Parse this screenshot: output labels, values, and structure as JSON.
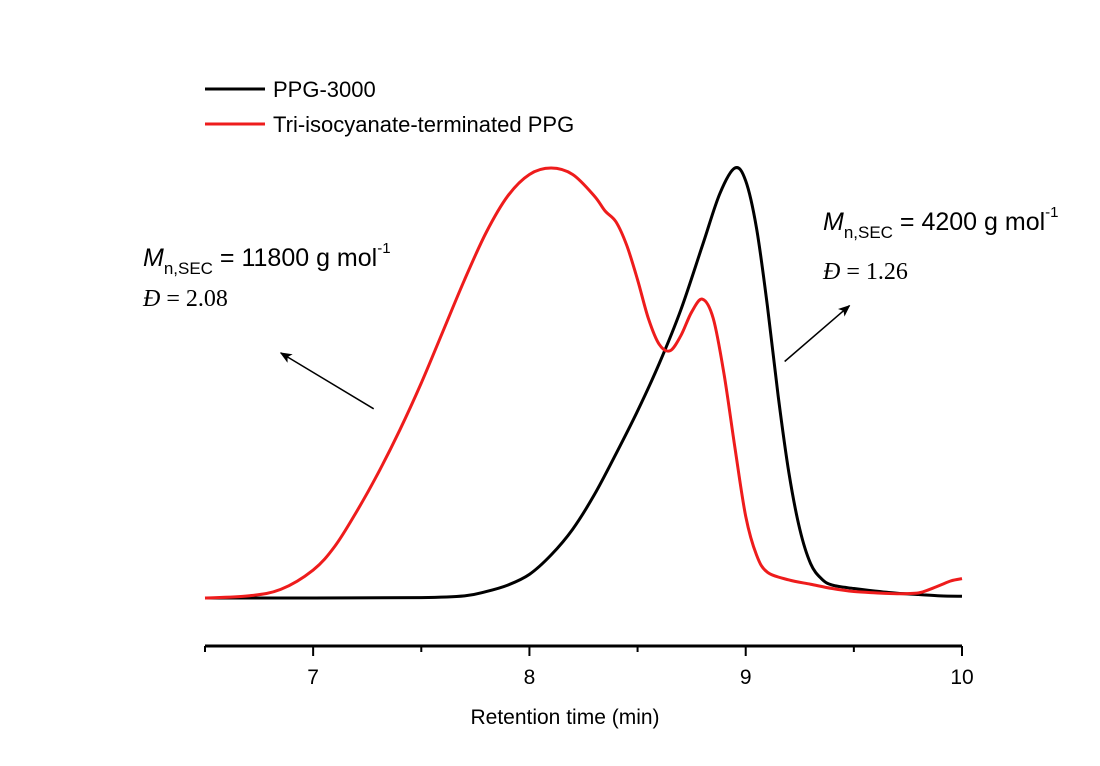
{
  "chart_data": {
    "type": "line",
    "xlabel": "Retention time (min)",
    "ylabel": "",
    "xlim": [
      6.5,
      10.0
    ],
    "ylim": [
      0,
      1.0
    ],
    "x_ticks": [
      7,
      8,
      9,
      10
    ],
    "x_tick_labels": [
      "7",
      "8",
      "9",
      "10"
    ],
    "grid": false,
    "y_axis_visible": false,
    "legend_position": "top-left",
    "series": [
      {
        "name": "PPG-3000",
        "color": "#000000",
        "points": [
          [
            6.5,
            0.0
          ],
          [
            7.0,
            0.0
          ],
          [
            7.5,
            0.001
          ],
          [
            7.7,
            0.005
          ],
          [
            7.8,
            0.015
          ],
          [
            7.9,
            0.03
          ],
          [
            8.0,
            0.055
          ],
          [
            8.1,
            0.1
          ],
          [
            8.2,
            0.16
          ],
          [
            8.3,
            0.24
          ],
          [
            8.4,
            0.335
          ],
          [
            8.5,
            0.435
          ],
          [
            8.6,
            0.545
          ],
          [
            8.7,
            0.67
          ],
          [
            8.8,
            0.82
          ],
          [
            8.88,
            0.94
          ],
          [
            8.95,
            1.0
          ],
          [
            9.0,
            0.97
          ],
          [
            9.05,
            0.86
          ],
          [
            9.1,
            0.68
          ],
          [
            9.15,
            0.47
          ],
          [
            9.2,
            0.29
          ],
          [
            9.25,
            0.16
          ],
          [
            9.3,
            0.08
          ],
          [
            9.35,
            0.045
          ],
          [
            9.4,
            0.03
          ],
          [
            9.5,
            0.022
          ],
          [
            9.6,
            0.016
          ],
          [
            9.7,
            0.011
          ],
          [
            9.8,
            0.008
          ],
          [
            9.9,
            0.005
          ],
          [
            10.0,
            0.004
          ]
        ]
      },
      {
        "name": "Tri-isocyanate-terminated PPG",
        "color": "#ee1c1c",
        "points": [
          [
            6.5,
            0.0
          ],
          [
            6.7,
            0.005
          ],
          [
            6.85,
            0.02
          ],
          [
            7.0,
            0.065
          ],
          [
            7.1,
            0.12
          ],
          [
            7.2,
            0.2
          ],
          [
            7.3,
            0.29
          ],
          [
            7.4,
            0.39
          ],
          [
            7.5,
            0.5
          ],
          [
            7.6,
            0.62
          ],
          [
            7.7,
            0.74
          ],
          [
            7.8,
            0.85
          ],
          [
            7.9,
            0.935
          ],
          [
            8.0,
            0.985
          ],
          [
            8.1,
            1.0
          ],
          [
            8.2,
            0.985
          ],
          [
            8.3,
            0.935
          ],
          [
            8.35,
            0.9
          ],
          [
            8.4,
            0.875
          ],
          [
            8.45,
            0.82
          ],
          [
            8.5,
            0.74
          ],
          [
            8.55,
            0.65
          ],
          [
            8.6,
            0.59
          ],
          [
            8.65,
            0.575
          ],
          [
            8.7,
            0.61
          ],
          [
            8.75,
            0.665
          ],
          [
            8.8,
            0.695
          ],
          [
            8.85,
            0.65
          ],
          [
            8.9,
            0.52
          ],
          [
            8.95,
            0.35
          ],
          [
            9.0,
            0.19
          ],
          [
            9.05,
            0.1
          ],
          [
            9.1,
            0.06
          ],
          [
            9.2,
            0.042
          ],
          [
            9.3,
            0.032
          ],
          [
            9.4,
            0.022
          ],
          [
            9.5,
            0.015
          ],
          [
            9.6,
            0.012
          ],
          [
            9.7,
            0.01
          ],
          [
            9.8,
            0.012
          ],
          [
            9.85,
            0.02
          ],
          [
            9.9,
            0.03
          ],
          [
            9.95,
            0.04
          ],
          [
            10.0,
            0.045
          ]
        ]
      }
    ],
    "annotations": [
      {
        "id": "left",
        "symbol": "M",
        "subscript": "n,SEC",
        "text": " = 11800 g mol",
        "superscript": "-1",
        "dispersity_symbol": "Đ",
        "dispersity_text": " = 2.08",
        "arrow_from": [
          7.28,
          0.44
        ],
        "arrow_to": [
          6.85,
          0.57
        ],
        "arrow_units": "data"
      },
      {
        "id": "right",
        "symbol": "M",
        "subscript": "n,SEC",
        "text": " = 4200 g mol",
        "superscript": "-1",
        "dispersity_symbol": "Đ",
        "dispersity_text": " = 1.26",
        "arrow_from": [
          9.18,
          0.55
        ],
        "arrow_to": [
          9.48,
          0.68
        ],
        "arrow_units": "data"
      }
    ]
  }
}
